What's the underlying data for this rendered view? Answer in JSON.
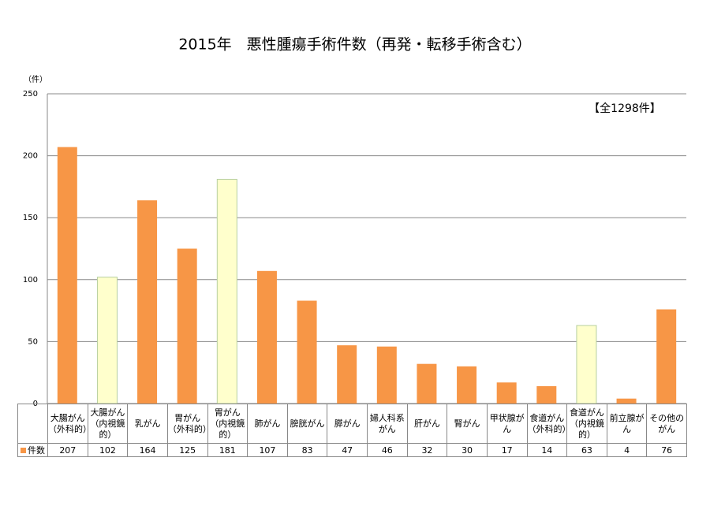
{
  "chart_data": {
    "type": "bar",
    "title": "2015年　悪性腫瘍手術件数（再発・転移手術含む）",
    "y_label": "（件）",
    "annotation": "【全1298件】",
    "categories": [
      "大腸がん（外科的）",
      "大腸がん（内視鏡的）",
      "乳がん",
      "胃がん（外科的）",
      "胃がん（内視鏡的）",
      "肺がん",
      "膀胱がん",
      "膵がん",
      "婦人科系がん",
      "肝がん",
      "腎がん",
      "甲状腺がん",
      "食道がん（外科的）",
      "食道がん（内視鏡的）",
      "前立腺がん",
      "その他のがん"
    ],
    "series": [
      {
        "name": "件数",
        "color": "#f79646",
        "colors": [
          "#f79646",
          "#ffffcc",
          "#f79646",
          "#f79646",
          "#ffffcc",
          "#f79646",
          "#f79646",
          "#f79646",
          "#f79646",
          "#f79646",
          "#f79646",
          "#f79646",
          "#f79646",
          "#ffffcc",
          "#f79646",
          "#f79646"
        ],
        "values": [
          207,
          102,
          164,
          125,
          181,
          107,
          83,
          47,
          46,
          32,
          30,
          17,
          14,
          63,
          4,
          76
        ]
      }
    ],
    "ylim": [
      0,
      250
    ],
    "yticks": [
      0,
      50,
      100,
      150,
      200,
      250
    ],
    "grid": true
  }
}
